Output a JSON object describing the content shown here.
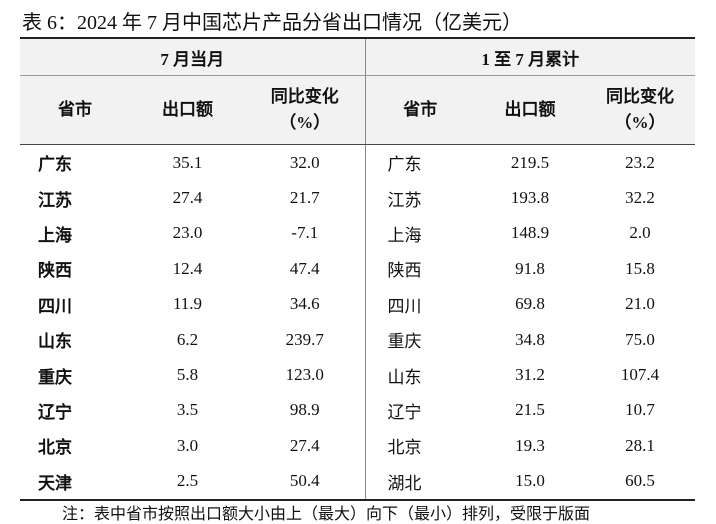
{
  "title": "表 6：2024 年 7 月中国芯片产品分省出口情况（亿美元）",
  "table": {
    "groups": [
      "7 月当月",
      "1 至 7 月累计"
    ],
    "headers": [
      [
        "省市"
      ],
      [
        "出口额"
      ],
      [
        "同比变化",
        "（%）"
      ],
      [
        "省市"
      ],
      [
        "出口额"
      ],
      [
        "同比变化",
        "（%）"
      ]
    ],
    "rows": [
      [
        "广东",
        "35.1",
        "32.0",
        "广东",
        "219.5",
        "23.2"
      ],
      [
        "江苏",
        "27.4",
        "21.7",
        "江苏",
        "193.8",
        "32.2"
      ],
      [
        "上海",
        "23.0",
        "-7.1",
        "上海",
        "148.9",
        "2.0"
      ],
      [
        "陕西",
        "12.4",
        "47.4",
        "陕西",
        "91.8",
        "15.8"
      ],
      [
        "四川",
        "11.9",
        "34.6",
        "四川",
        "69.8",
        "21.0"
      ],
      [
        "山东",
        "6.2",
        "239.7",
        "重庆",
        "34.8",
        "75.0"
      ],
      [
        "重庆",
        "5.8",
        "123.0",
        "山东",
        "31.2",
        "107.4"
      ],
      [
        "辽宁",
        "3.5",
        "98.9",
        "辽宁",
        "21.5",
        "10.7"
      ],
      [
        "北京",
        "3.0",
        "27.4",
        "北京",
        "19.3",
        "28.1"
      ],
      [
        "天津",
        "2.5",
        "50.4",
        "湖北",
        "15.0",
        "60.5"
      ]
    ]
  },
  "note": "注：表中省市按照出口额大小由上（最大）向下（最小）排列，受限于版面"
}
